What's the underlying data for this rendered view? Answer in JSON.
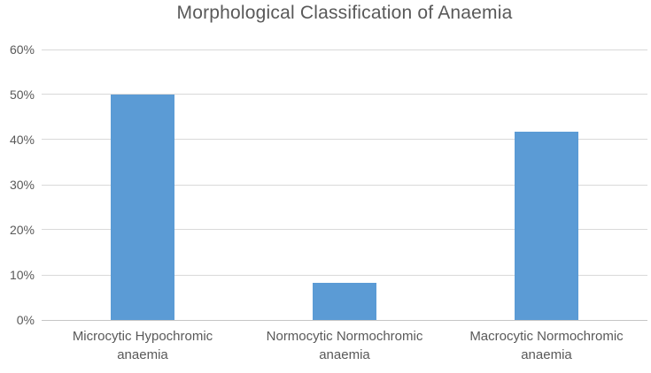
{
  "chart_data": {
    "type": "bar",
    "title": "Morphological Classification of Anaemia",
    "categories": [
      "Microcytic Hypochromic anaemia",
      "Normocytic Normochromic anaemia",
      "Macrocytic Normochromic anaemia"
    ],
    "values": [
      50,
      8.3,
      41.7
    ],
    "xlabel": "",
    "ylabel": "",
    "ylim": [
      0,
      60
    ],
    "ytick_step": 10,
    "ytick_labels": [
      "0%",
      "10%",
      "20%",
      "30%",
      "40%",
      "50%",
      "60%"
    ],
    "grid": true,
    "legend": false,
    "data_labels": false
  },
  "colors": {
    "bar": "#5b9bd5",
    "title_text": "#595959",
    "axis_text": "#595959",
    "gridline": "#d9d9d9",
    "axis_line": "#c6c6c6",
    "background": "#ffffff"
  }
}
